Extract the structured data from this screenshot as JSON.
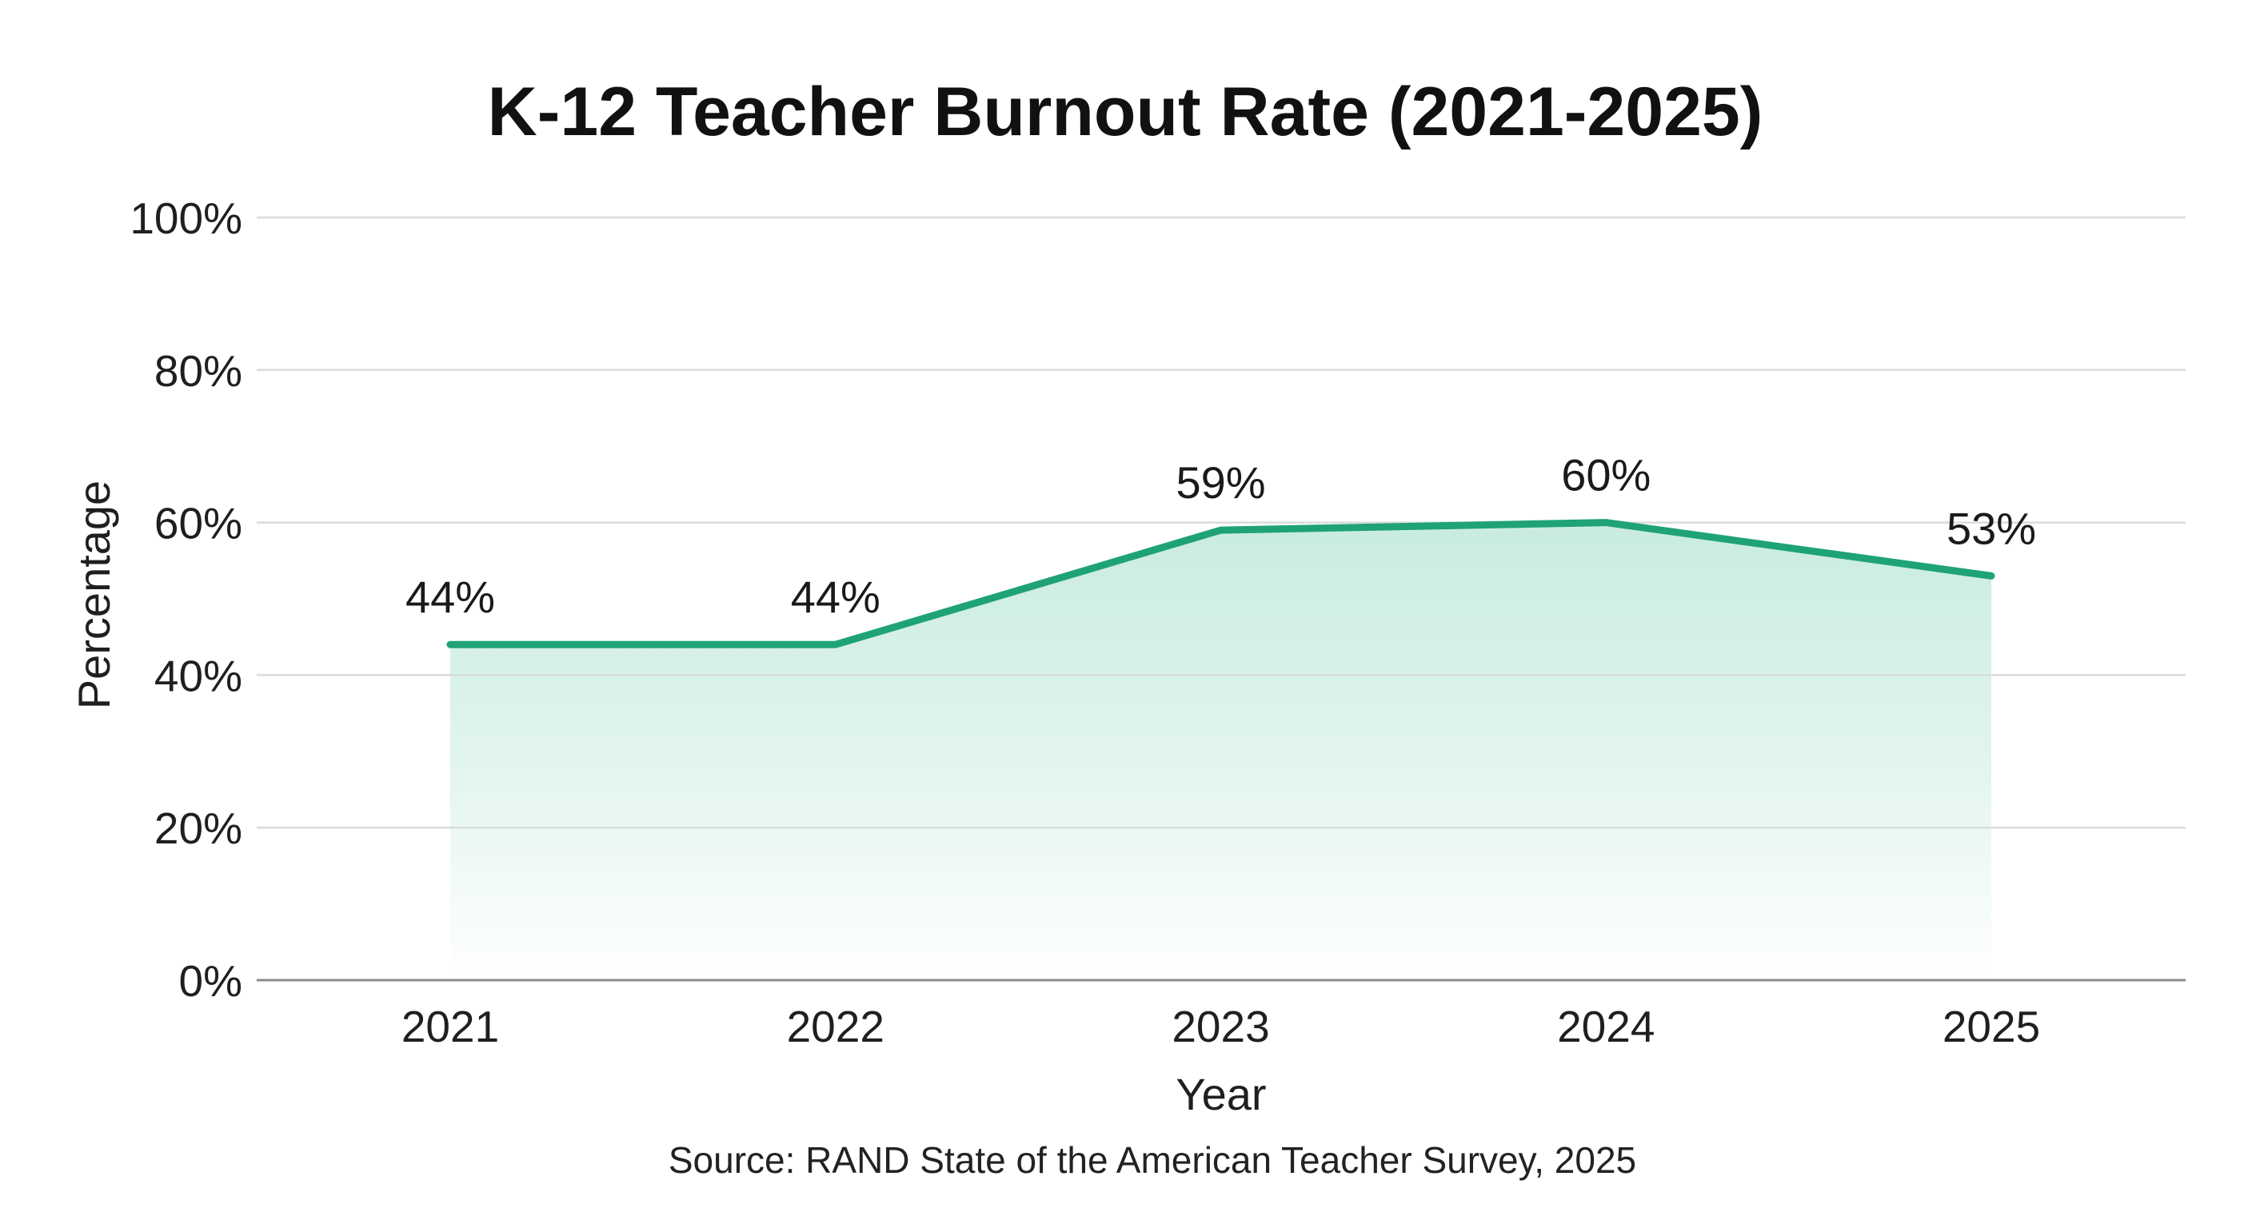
{
  "chart_data": {
    "type": "area",
    "title": "K-12 Teacher Burnout Rate (2021-2025)",
    "xlabel": "Year",
    "ylabel": "Percentage",
    "categories": [
      "2021",
      "2022",
      "2023",
      "2024",
      "2025"
    ],
    "series": [
      {
        "name": "Teacher Burnout Rate",
        "values": [
          44,
          44,
          59,
          60,
          53
        ],
        "data_labels": [
          "44%",
          "44%",
          "59%",
          "60%",
          "53%"
        ]
      }
    ],
    "ylim": [
      0,
      100
    ],
    "yticks": [
      0,
      20,
      40,
      60,
      80,
      100
    ],
    "ytick_labels": [
      "0%",
      "20%",
      "40%",
      "60%",
      "80%",
      "100%"
    ],
    "grid": true,
    "legend": null,
    "source": "Source: RAND State of the American Teacher Survey, 2025"
  },
  "colors": {
    "line": "#1fa374",
    "fill_top": "#c9ecdf",
    "fill_bottom": "#ffffff",
    "grid": "#d7dcdf",
    "baseline": "#8c8c8c",
    "text": "#1a1a1a"
  }
}
